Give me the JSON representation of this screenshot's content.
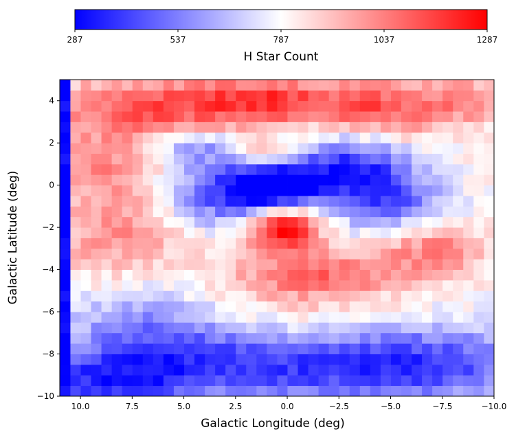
{
  "chart_data": {
    "type": "heatmap",
    "title": "",
    "xlabel": "Galactic Longitude (deg)",
    "ylabel": "Galactic Latitude (deg)",
    "xlim": [
      11,
      -10
    ],
    "ylim": [
      -10,
      5
    ],
    "xticks": [
      10.0,
      7.5,
      5.0,
      2.5,
      0.0,
      -2.5,
      -5.0,
      -7.5,
      -10.0
    ],
    "xtick_labels": [
      "10.0",
      "7.5",
      "5.0",
      "2.5",
      "0.0",
      "−2.5",
      "−5.0",
      "−7.5",
      "−10.0"
    ],
    "yticks": [
      4,
      2,
      0,
      -2,
      -4,
      -6,
      -8,
      -10
    ],
    "ytick_labels": [
      "4",
      "2",
      "0",
      "−2",
      "−4",
      "−6",
      "−8",
      "−10"
    ],
    "colormap": "bwr",
    "colorbar": {
      "label": "H Star Count",
      "orientation": "horizontal",
      "placement": "top",
      "min": 287,
      "max": 1287,
      "ticks": [
        287,
        537,
        787,
        1037,
        1287
      ],
      "tick_labels": [
        "287",
        "537",
        "787",
        "1037",
        "1287"
      ],
      "colors": {
        "low": "#0000ff",
        "mid": "#ffffff",
        "high": "#ff0000"
      }
    },
    "grid": false,
    "cell_step_deg": 0.5,
    "field": {
      "background": 800,
      "features": [
        {
          "l": 7.0,
          "b": 3.6,
          "amp": 310,
          "sl": 3.2,
          "sb": 1.1
        },
        {
          "l": 1.0,
          "b": 4.0,
          "amp": 350,
          "sl": 2.6,
          "sb": 0.8
        },
        {
          "l": -4.5,
          "b": 3.6,
          "amp": 300,
          "sl": 2.2,
          "sb": 1.0
        },
        {
          "l": -9.0,
          "b": 4.0,
          "amp": 200,
          "sl": 1.8,
          "sb": 0.8
        },
        {
          "l": 9.0,
          "b": 1.0,
          "amp": 150,
          "sl": 2.0,
          "sb": 1.0
        },
        {
          "l": 0.5,
          "b": 0.0,
          "amp": -520,
          "sl": 1.5,
          "sb": 0.8
        },
        {
          "l": 3.2,
          "b": -0.4,
          "amp": -380,
          "sl": 2.2,
          "sb": 1.1
        },
        {
          "l": -3.0,
          "b": 0.8,
          "amp": -420,
          "sl": 2.0,
          "sb": 1.1
        },
        {
          "l": -5.0,
          "b": -0.8,
          "amp": -300,
          "sl": 1.8,
          "sb": 1.0
        },
        {
          "l": 4.5,
          "b": 1.8,
          "amp": -250,
          "sl": 1.5,
          "sb": 0.6
        },
        {
          "l": 0.2,
          "b": -2.0,
          "amp": 520,
          "sl": 1.2,
          "sb": 0.8
        },
        {
          "l": -1.5,
          "b": -4.2,
          "amp": 250,
          "sl": 3.0,
          "sb": 0.8
        },
        {
          "l": -7.0,
          "b": -3.0,
          "amp": 230,
          "sl": 1.8,
          "sb": 0.9
        },
        {
          "l": 7.5,
          "b": -1.0,
          "amp": 160,
          "sl": 2.5,
          "sb": 1.5
        },
        {
          "l": 8.5,
          "b": -3.0,
          "amp": 120,
          "sl": 2.0,
          "sb": 1.2
        },
        {
          "l": 1.0,
          "b": 1.5,
          "amp": 240,
          "sl": 1.2,
          "sb": 0.4
        },
        {
          "l": 4.0,
          "b": -8.5,
          "amp": -350,
          "sl": 5.0,
          "sb": 1.3
        },
        {
          "l": -6.0,
          "b": -8.5,
          "amp": -400,
          "sl": 4.5,
          "sb": 1.3
        },
        {
          "l": 9.0,
          "b": -9.5,
          "amp": -300,
          "sl": 2.5,
          "sb": 1.0
        },
        {
          "l": 7.0,
          "b": -6.5,
          "amp": -180,
          "sl": 2.5,
          "sb": 1.2
        },
        {
          "l": -1.0,
          "b": -6.0,
          "amp": 100,
          "sl": 3.0,
          "sb": 1.2
        }
      ],
      "edge_strip": {
        "l_min": 10.6,
        "value": 287
      }
    }
  }
}
